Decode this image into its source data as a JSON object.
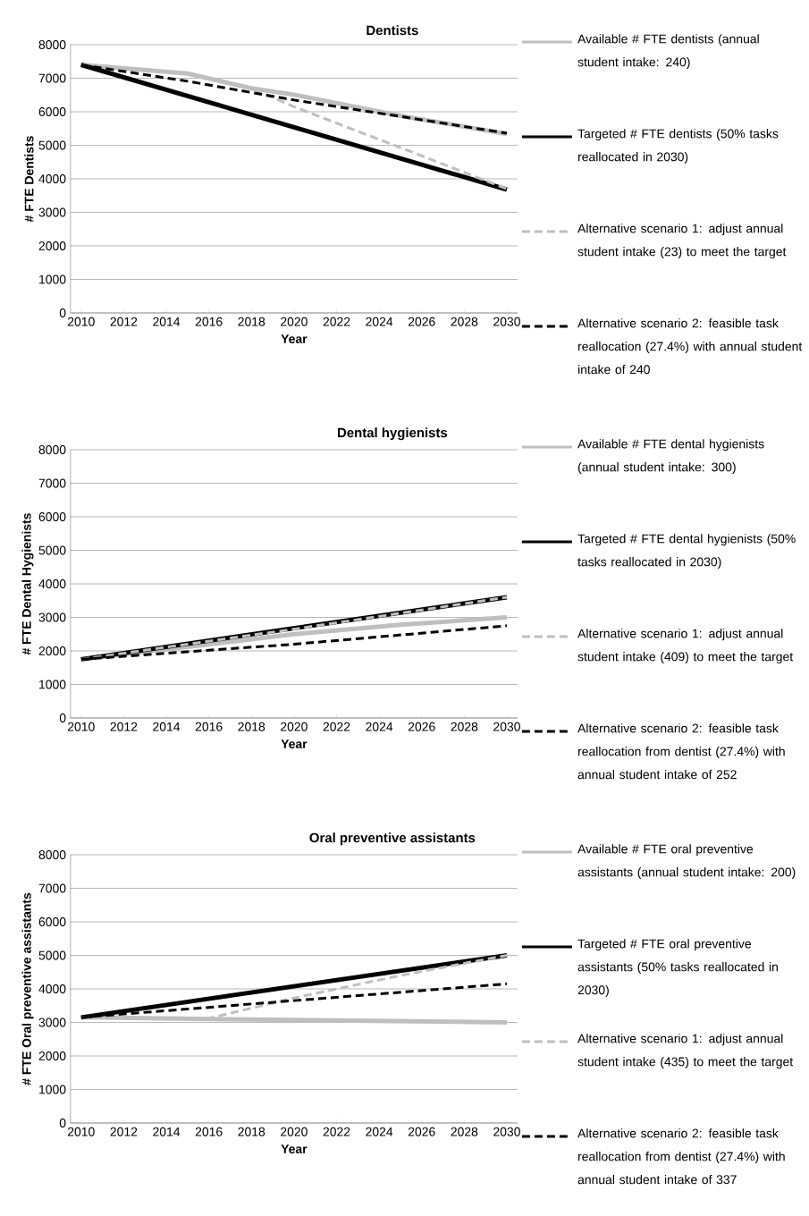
{
  "chart_data": [
    {
      "type": "line",
      "title": "Dentists",
      "xlabel": "Year",
      "ylabel": "# FTE Dentists",
      "xlim": [
        2009.5,
        2030.5
      ],
      "xticks": [
        2010,
        2012,
        2014,
        2016,
        2018,
        2020,
        2022,
        2024,
        2026,
        2028,
        2030
      ],
      "ylim": [
        0,
        8000
      ],
      "yticks": [
        0,
        1000,
        2000,
        3000,
        4000,
        5000,
        6000,
        7000,
        8000
      ],
      "grid": "y",
      "legend": "right",
      "series": [
        {
          "name": "Available # FTE dentists (annual student intake: 240)",
          "color": "#bfbfbf",
          "line_style": "solid",
          "x": [
            2010,
            2015,
            2018,
            2020,
            2025,
            2030
          ],
          "values": [
            7400,
            7140,
            6700,
            6510,
            5880,
            5340
          ]
        },
        {
          "name": "Targeted # FTE dentists (50% tasks reallocated in 2030)",
          "color": "#000000",
          "line_style": "solid",
          "x": [
            2010,
            2030
          ],
          "values": [
            7400,
            3680
          ]
        },
        {
          "name": "Alternative scenario 1: adjust annual student intake (23) to meet the target",
          "color": "#bfbfbf",
          "line_style": "dashed",
          "x": [
            2010,
            2015,
            2018,
            2020,
            2025,
            2030
          ],
          "values": [
            7400,
            7140,
            6700,
            6150,
            4930,
            3700
          ]
        },
        {
          "name": "Alternative scenario 2: feasible task reallocation (27.4%) with annual student intake of 240",
          "color": "#000000",
          "line_style": "dashed",
          "x": [
            2010,
            2015,
            2020,
            2025,
            2030
          ],
          "values": [
            7400,
            6910,
            6350,
            5860,
            5360
          ]
        }
      ]
    },
    {
      "type": "line",
      "title": "Dental hygienists",
      "xlabel": "Year",
      "ylabel": "# FTE Dental Hygienists",
      "xlim": [
        2009.5,
        2030.5
      ],
      "xticks": [
        2010,
        2012,
        2014,
        2016,
        2018,
        2020,
        2022,
        2024,
        2026,
        2028,
        2030
      ],
      "ylim": [
        0,
        8000
      ],
      "yticks": [
        0,
        1000,
        2000,
        3000,
        4000,
        5000,
        6000,
        7000,
        8000
      ],
      "grid": "y",
      "legend": "right",
      "series": [
        {
          "name": "Available # FTE dental hygienists (annual student intake: 300)",
          "color": "#bfbfbf",
          "line_style": "solid",
          "x": [
            2010,
            2015,
            2020,
            2025,
            2030
          ],
          "values": [
            1750,
            2120,
            2500,
            2780,
            3000
          ]
        },
        {
          "name": "Targeted # FTE dental hygienists (50% tasks reallocated in 2030)",
          "color": "#000000",
          "line_style": "solid",
          "x": [
            2010,
            2030
          ],
          "values": [
            1750,
            3600
          ]
        },
        {
          "name": "Alternative scenario 1: adjust annual student intake (409) to meet the target",
          "color": "#bfbfbf",
          "line_style": "dashed",
          "x": [
            2010,
            2020,
            2030
          ],
          "values": [
            1750,
            2650,
            3600
          ]
        },
        {
          "name": "Alternative scenario 2: feasible task reallocation from dentist (27.4%) with annual student intake of 252",
          "color": "#000000",
          "line_style": "dashed",
          "x": [
            2010,
            2020,
            2030
          ],
          "values": [
            1750,
            2200,
            2750
          ]
        }
      ]
    },
    {
      "type": "line",
      "title": "Oral preventive assistants",
      "xlabel": "Year",
      "ylabel": "# FTE Oral preventive assistants",
      "xlim": [
        2009.5,
        2030.5
      ],
      "xticks": [
        2010,
        2012,
        2014,
        2016,
        2018,
        2020,
        2022,
        2024,
        2026,
        2028,
        2030
      ],
      "ylim": [
        0,
        8000
      ],
      "yticks": [
        0,
        1000,
        2000,
        3000,
        4000,
        5000,
        6000,
        7000,
        8000
      ],
      "grid": "y",
      "legend": "right",
      "series": [
        {
          "name": "Available # FTE oral preventive assistants (annual student intake: 200)",
          "color": "#bfbfbf",
          "line_style": "solid",
          "x": [
            2010,
            2020,
            2030
          ],
          "values": [
            3150,
            3070,
            3000
          ]
        },
        {
          "name": "Targeted # FTE oral preventive assistants (50% tasks reallocated in 2030)",
          "color": "#000000",
          "line_style": "solid",
          "x": [
            2010,
            2030
          ],
          "values": [
            3150,
            5000
          ]
        },
        {
          "name": "Alternative scenario 1: adjust annual student intake (435) to meet the target",
          "color": "#bfbfbf",
          "line_style": "dashed",
          "x": [
            2010,
            2016,
            2020,
            2025,
            2030
          ],
          "values": [
            3150,
            3120,
            3730,
            4400,
            5000
          ]
        },
        {
          "name": "Alternative scenario 2: feasible task reallocation from dentist (27.4%) with annual student intake of 337",
          "color": "#000000",
          "line_style": "dashed",
          "x": [
            2010,
            2020,
            2030
          ],
          "values": [
            3150,
            3650,
            4150
          ]
        }
      ]
    }
  ]
}
